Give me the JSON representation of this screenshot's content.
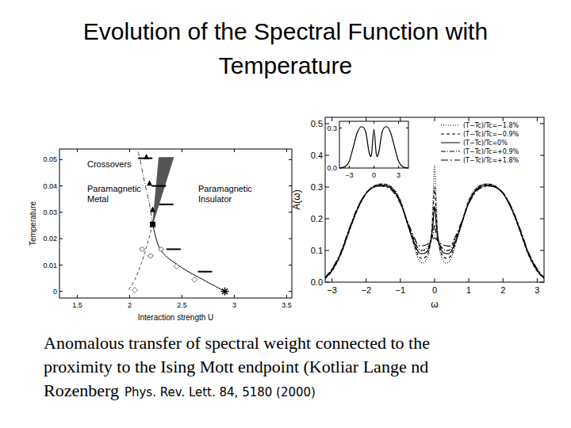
{
  "slide_title": [
    "Evolution of the Spectral Function with",
    "Temperature"
  ],
  "caption": {
    "lines": [
      "Anomalous transfer of spectral weight connected to the",
      "proximity to the Ising Mott endpoint (Kotliar Lange nd",
      "Rozenberg"
    ],
    "citation": "Phys. Rev. Lett. 84, 5180 (2000)"
  },
  "chart_data": [
    {
      "type": "line",
      "x_label": "Interaction strength U",
      "y_label": "Temperature",
      "xlim": [
        1.33,
        3.55
      ],
      "ylim": [
        -0.0025,
        0.054
      ],
      "xticks": [
        1.5,
        2,
        2.5,
        3,
        3.5
      ],
      "yticks": [
        0,
        0.01,
        0.02,
        0.03,
        0.04,
        0.05
      ],
      "annotations": [
        [
          "Crossovers"
        ],
        [
          "Paramagnetic",
          "Metal"
        ],
        [
          "Paramagnetic",
          "Insulator"
        ]
      ],
      "series": [
        {
          "type": "area",
          "color": "#555555",
          "x": [
            2.22,
            2.28,
            2.42
          ],
          "values": [
            0.0254,
            0.0508,
            0.0508
          ]
        },
        {
          "type": "line",
          "line_style": "solid",
          "color": "#000000",
          "x": [
            2.22,
            2.3,
            2.5,
            2.7,
            2.91
          ],
          "values": [
            0.0254,
            0.0155,
            0.009,
            0.0045,
            0
          ]
        },
        {
          "type": "line",
          "line_style": "dashed",
          "color": "#444444",
          "x": [
            2.22,
            2.17,
            2.11,
            2.05,
            1.98
          ],
          "values": [
            0.0254,
            0.018,
            0.0105,
            0.0045,
            0
          ]
        },
        {
          "type": "line",
          "line_style": "dashdot",
          "color": "#444444",
          "x": [
            2.22,
            2.19,
            2.14,
            2.1,
            2.08
          ],
          "values": [
            0.0254,
            0.033,
            0.042,
            0.05,
            0.053
          ]
        },
        {
          "type": "scatter",
          "marker": "triangle",
          "color": "#000000",
          "x": [
            2.16,
            2.19,
            2.22
          ],
          "values": [
            0.051,
            0.041,
            0.031
          ]
        },
        {
          "type": "scatter",
          "marker": "dash",
          "color": "#000000",
          "x": [
            2.15,
            2.28,
            2.35,
            2.42,
            2.72
          ],
          "values": [
            0.0505,
            0.04,
            0.033,
            0.016,
            0.0075
          ]
        },
        {
          "type": "scatter",
          "marker": "circle",
          "color": "#555555",
          "x": [
            2.12,
            2.2,
            2.3
          ],
          "values": [
            0.016,
            0.0135,
            0.016
          ],
          "xerr": [
            0.03,
            0.03,
            0.025
          ]
        },
        {
          "type": "scatter",
          "marker": "diamond",
          "color": "#555555",
          "x": [
            2.05,
            2.45,
            2.62
          ],
          "values": [
            0.0005,
            0.0095,
            0.0045
          ]
        },
        {
          "type": "scatter",
          "marker": "square",
          "color": "#000000",
          "x": [
            2.22
          ],
          "values": [
            0.0254
          ]
        },
        {
          "type": "scatter",
          "marker": "star",
          "color": "#000000",
          "x": [
            2.91
          ],
          "values": [
            0
          ]
        }
      ]
    },
    {
      "type": "line",
      "x_label": "ω",
      "y_label": "A(ω)",
      "legend": "top-right",
      "xlim": [
        -3.2,
        3.2
      ],
      "ylim": [
        0,
        0.52
      ],
      "xticks": [
        {
          "value": -3,
          "label": "−3"
        },
        {
          "value": -2,
          "label": "−2"
        },
        {
          "value": -1,
          "label": "−1"
        },
        0,
        1,
        2,
        3
      ],
      "yticks": [
        {
          "value": 0,
          "label": "0.0"
        },
        0.1,
        0.2,
        0.3,
        0.4,
        0.5
      ],
      "x": [
        -3.2,
        -3,
        -2.75,
        -2.5,
        -2.25,
        -2,
        -1.75,
        -1.5,
        -1.25,
        -1,
        -0.75,
        -0.5,
        -0.35,
        -0.2,
        -0.1,
        -0.05,
        0,
        0.05,
        0.1,
        0.2,
        0.35,
        0.5,
        0.75,
        1,
        1.25,
        1.5,
        1.75,
        2,
        2.25,
        2.5,
        2.75,
        3,
        3.2
      ],
      "series": [
        {
          "name": "(T−Tc)/Tc=−1.8%",
          "color": "#000000",
          "line_style": "dotted",
          "values": [
            0.012,
            0.035,
            0.085,
            0.16,
            0.23,
            0.28,
            0.305,
            0.31,
            0.3,
            0.26,
            0.17,
            0.08,
            0.06,
            0.08,
            0.14,
            0.25,
            0.37,
            0.25,
            0.14,
            0.08,
            0.06,
            0.08,
            0.17,
            0.26,
            0.3,
            0.31,
            0.305,
            0.28,
            0.23,
            0.16,
            0.085,
            0.035,
            0.012
          ]
        },
        {
          "name": "(T−Tc)/Tc=−0.9%",
          "color": "#000000",
          "line_style": "dashed",
          "values": [
            0.012,
            0.035,
            0.085,
            0.16,
            0.23,
            0.28,
            0.304,
            0.309,
            0.298,
            0.256,
            0.17,
            0.09,
            0.075,
            0.09,
            0.14,
            0.21,
            0.3,
            0.21,
            0.14,
            0.09,
            0.075,
            0.09,
            0.17,
            0.256,
            0.298,
            0.309,
            0.304,
            0.28,
            0.23,
            0.16,
            0.085,
            0.035,
            0.012
          ]
        },
        {
          "name": "(T−Tc)/Tc=0%",
          "color": "#000000",
          "line_style": "solid",
          "values": [
            0.013,
            0.037,
            0.088,
            0.163,
            0.232,
            0.28,
            0.302,
            0.306,
            0.295,
            0.252,
            0.17,
            0.1,
            0.09,
            0.1,
            0.14,
            0.18,
            0.24,
            0.18,
            0.14,
            0.1,
            0.09,
            0.1,
            0.17,
            0.252,
            0.295,
            0.306,
            0.302,
            0.28,
            0.232,
            0.163,
            0.088,
            0.037,
            0.013
          ]
        },
        {
          "name": "(T−Tc)/Tc=+0.9%",
          "color": "#000000",
          "line_style": "dashdot",
          "values": [
            0.014,
            0.04,
            0.09,
            0.165,
            0.234,
            0.281,
            0.301,
            0.304,
            0.293,
            0.25,
            0.175,
            0.11,
            0.1,
            0.11,
            0.13,
            0.15,
            0.18,
            0.15,
            0.13,
            0.11,
            0.1,
            0.11,
            0.175,
            0.25,
            0.293,
            0.304,
            0.301,
            0.281,
            0.234,
            0.165,
            0.09,
            0.04,
            0.014
          ]
        },
        {
          "name": "(T−Tc)/Tc=+1.8%",
          "color": "#000000",
          "line_style": "longdashdot",
          "values": [
            0.015,
            0.042,
            0.093,
            0.168,
            0.236,
            0.282,
            0.3,
            0.302,
            0.29,
            0.248,
            0.18,
            0.12,
            0.115,
            0.12,
            0.13,
            0.135,
            0.14,
            0.135,
            0.13,
            0.12,
            0.115,
            0.12,
            0.18,
            0.248,
            0.29,
            0.302,
            0.3,
            0.282,
            0.236,
            0.168,
            0.093,
            0.042,
            0.015
          ]
        }
      ]
    },
    {
      "type": "line",
      "xlim": [
        -4.2,
        4.2
      ],
      "ylim": [
        0,
        0.35
      ],
      "xticks": [
        {
          "value": -3,
          "label": "−3"
        },
        0,
        3
      ],
      "yticks": [
        {
          "value": 0,
          "label": "0.0"
        },
        0.3
      ],
      "series": [
        {
          "color": "#000000",
          "line_style": "solid",
          "x": [
            -4.2,
            -3.5,
            -3,
            -2.5,
            -2,
            -1.5,
            -1,
            -0.6,
            -0.3,
            0,
            0.3,
            0.6,
            1,
            1.5,
            2,
            2.5,
            3,
            3.5,
            4.2
          ],
          "values": [
            0,
            0.01,
            0.05,
            0.16,
            0.27,
            0.31,
            0.27,
            0.12,
            0.1,
            0.29,
            0.1,
            0.12,
            0.27,
            0.31,
            0.27,
            0.16,
            0.05,
            0.01,
            0
          ]
        }
      ]
    }
  ]
}
